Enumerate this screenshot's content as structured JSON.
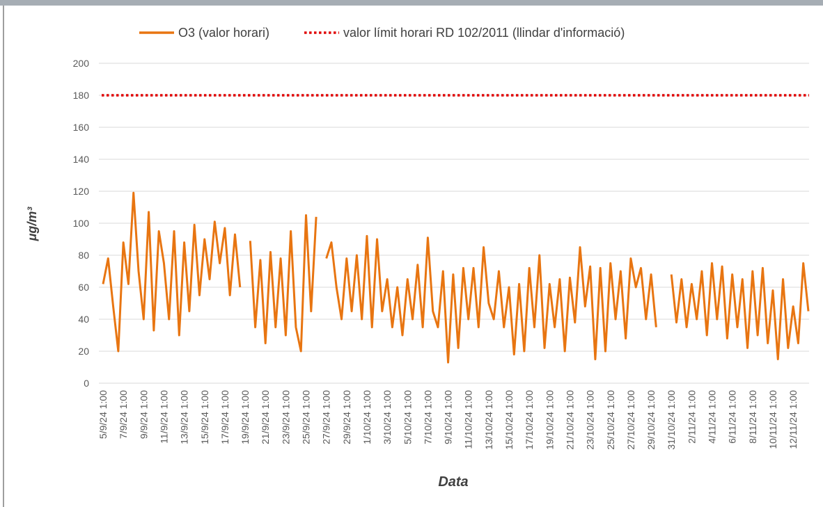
{
  "chart_data": {
    "type": "line",
    "ylabel": "μg/m³",
    "xlabel": "Data",
    "ylim": [
      0,
      200
    ],
    "yticks": [
      0,
      20,
      40,
      60,
      80,
      100,
      120,
      140,
      160,
      180,
      200
    ],
    "grid": true,
    "categories": [
      "5/9/24 1:00",
      null,
      null,
      null,
      "7/9/24 1:00",
      null,
      null,
      null,
      "9/9/24 1:00",
      null,
      null,
      null,
      "11/9/24 1:00",
      null,
      null,
      null,
      "13/9/24 1:00",
      null,
      null,
      null,
      "15/9/24 1:00",
      null,
      null,
      null,
      "17/9/24 1:00",
      null,
      null,
      null,
      "19/9/24 1:00",
      null,
      null,
      null,
      "21/9/24 1:00",
      null,
      null,
      null,
      "23/9/24 1:00",
      null,
      null,
      null,
      "25/9/24 1:00",
      null,
      null,
      null,
      "27/9/24 1:00",
      null,
      null,
      null,
      "29/9/24 1:00",
      null,
      null,
      null,
      "1/10/24 1:00",
      null,
      null,
      null,
      "3/10/24 1:00",
      null,
      null,
      null,
      "5/10/24 1:00",
      null,
      null,
      null,
      "7/10/24 1:00",
      null,
      null,
      null,
      "9/10/24 1:00",
      null,
      null,
      null,
      "11/10/24 1:00",
      null,
      null,
      null,
      "13/10/24 1:00",
      null,
      null,
      null,
      "15/10/24 1:00",
      null,
      null,
      null,
      "17/10/24 1:00",
      null,
      null,
      null,
      "19/10/24 1:00",
      null,
      null,
      null,
      "21/10/24 1:00",
      null,
      null,
      null,
      "23/10/24 1:00",
      null,
      null,
      null,
      "25/10/24 1:00",
      null,
      null,
      null,
      "27/10/24 1:00",
      null,
      null,
      null,
      "29/10/24 1:00",
      null,
      null,
      null,
      "31/10/24 1:00",
      null,
      null,
      null,
      "2/11/24 1:00",
      null,
      null,
      null,
      "4/11/24 1:00",
      null,
      null,
      null,
      "6/11/24 1:00",
      null,
      null,
      null,
      "8/11/24 1:00",
      null,
      null,
      null,
      "10/11/24 1:00",
      null,
      null,
      null,
      "12/11/24 1:00",
      null,
      null,
      null
    ],
    "series": [
      {
        "name": "O3 (valor horari)",
        "color": "#e87511",
        "values": [
          62,
          78,
          48,
          20,
          88,
          62,
          119,
          70,
          40,
          107,
          33,
          95,
          75,
          40,
          95,
          30,
          88,
          45,
          99,
          55,
          90,
          65,
          101,
          75,
          97,
          55,
          93,
          60,
          null,
          89,
          35,
          77,
          25,
          82,
          35,
          78,
          30,
          95,
          35,
          20,
          105,
          45,
          104,
          null,
          78,
          88,
          60,
          40,
          78,
          45,
          80,
          40,
          92,
          35,
          90,
          45,
          65,
          35,
          60,
          30,
          65,
          40,
          74,
          35,
          91,
          45,
          35,
          70,
          13,
          68,
          22,
          72,
          40,
          72,
          35,
          85,
          50,
          40,
          70,
          35,
          60,
          18,
          62,
          20,
          72,
          35,
          80,
          22,
          62,
          35,
          65,
          20,
          66,
          38,
          85,
          48,
          73,
          15,
          72,
          20,
          75,
          40,
          70,
          28,
          78,
          60,
          72,
          40,
          68,
          35,
          null,
          null,
          68,
          38,
          65,
          35,
          62,
          40,
          70,
          30,
          75,
          40,
          73,
          28,
          68,
          35,
          65,
          22,
          70,
          30,
          72,
          25,
          58,
          15,
          65,
          22,
          48,
          25,
          75,
          45
        ]
      }
    ],
    "hlines": [
      {
        "name": "valor límit horari RD 102/2011 (llindar d'informació)",
        "value": 180,
        "color": "#e00000"
      }
    ]
  }
}
